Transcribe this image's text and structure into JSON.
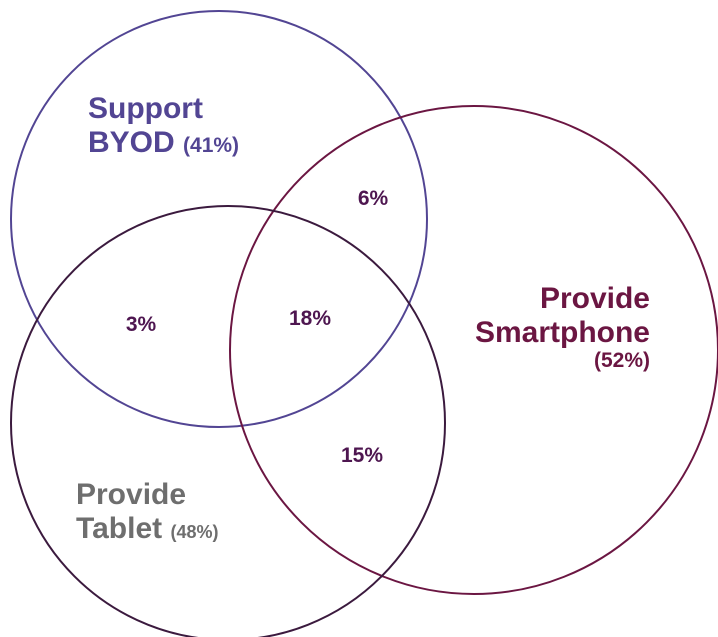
{
  "colors": {
    "byod": "#524593",
    "smartphone": "#6b1642",
    "tablet": "#3b1a3e",
    "tablet_label": "#6e6e6e",
    "overlap_text": "#4e1650"
  },
  "sets": {
    "byod": {
      "name_line1": "Support",
      "name_line2": "BYOD",
      "percent": "(41%)"
    },
    "smartphone": {
      "name_line1": "Provide",
      "name_line2": "Smartphone",
      "percent": "(52%)"
    },
    "tablet": {
      "name_line1": "Provide",
      "name_line2": "Tablet",
      "percent": "(48%)"
    }
  },
  "overlaps": {
    "byod_smartphone": "6%",
    "byod_tablet": "3%",
    "all_three": "18%",
    "smartphone_tablet": "15%"
  }
}
